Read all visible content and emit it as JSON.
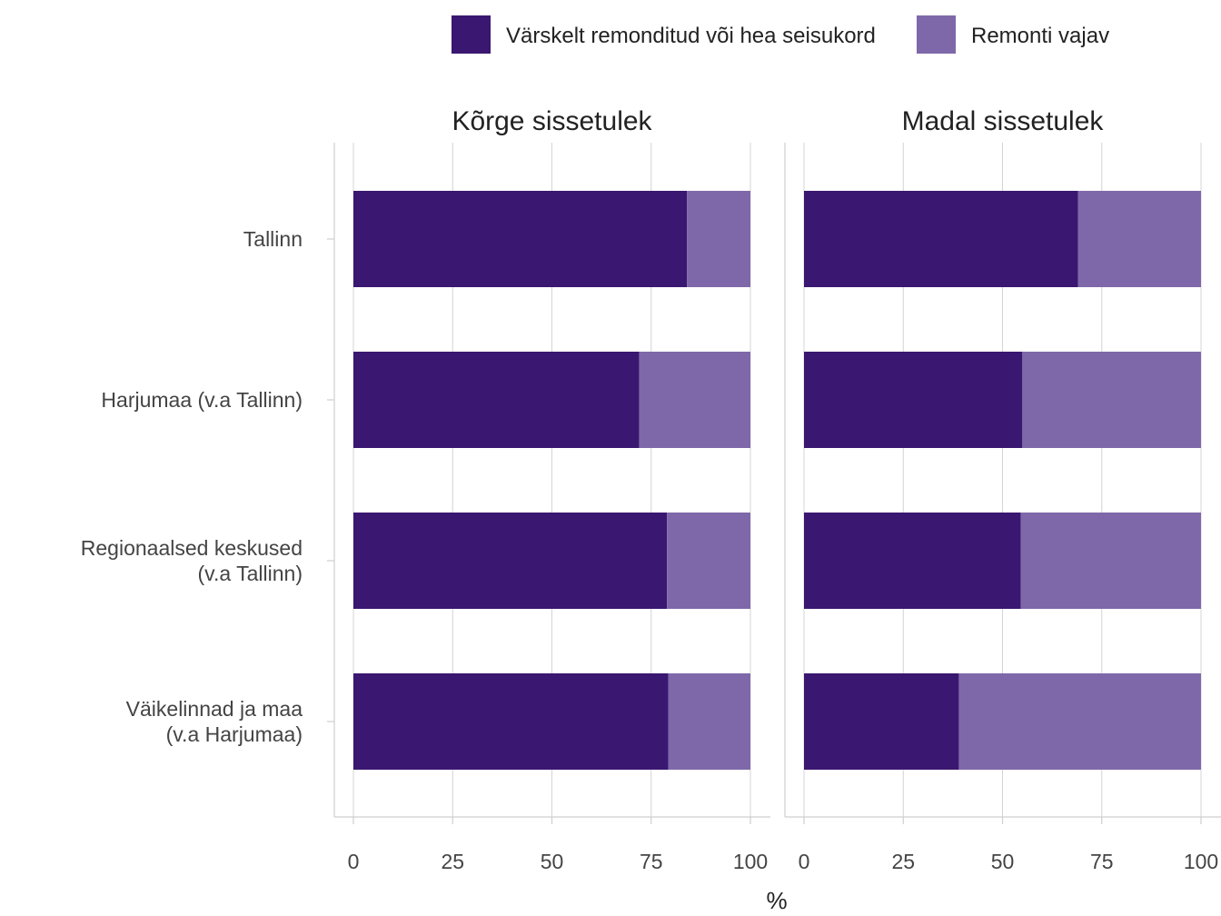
{
  "chart_data": {
    "type": "bar",
    "orientation": "horizontal",
    "stacked": true,
    "xlabel": "%",
    "xlim": [
      0,
      100
    ],
    "xticks": [
      "0",
      "25",
      "50",
      "75",
      "100"
    ],
    "grid": true,
    "legend_position": "top-right",
    "categories": [
      [
        "Tallinn"
      ],
      [
        "Harjumaa (v.a Tallinn)"
      ],
      [
        "Regionaalsed keskused",
        "(v.a Tallinn)"
      ],
      [
        "Väikelinnad ja maa",
        "(v.a Harjumaa)"
      ]
    ],
    "series": [
      {
        "name": "Värskelt remonditud või hea seisukord",
        "color": "#3a1770"
      },
      {
        "name": "Remonti vajav",
        "color": "#7e68a9"
      }
    ],
    "panels": [
      {
        "title": "Kõrge sissetulek",
        "values": [
          [
            84,
            16
          ],
          [
            72,
            28
          ],
          [
            79,
            21
          ],
          [
            79.3,
            20.7
          ]
        ]
      },
      {
        "title": "Madal sissetulek",
        "values": [
          [
            69,
            31
          ],
          [
            55,
            45
          ],
          [
            54.6,
            45.4
          ],
          [
            39,
            61
          ]
        ]
      }
    ]
  }
}
